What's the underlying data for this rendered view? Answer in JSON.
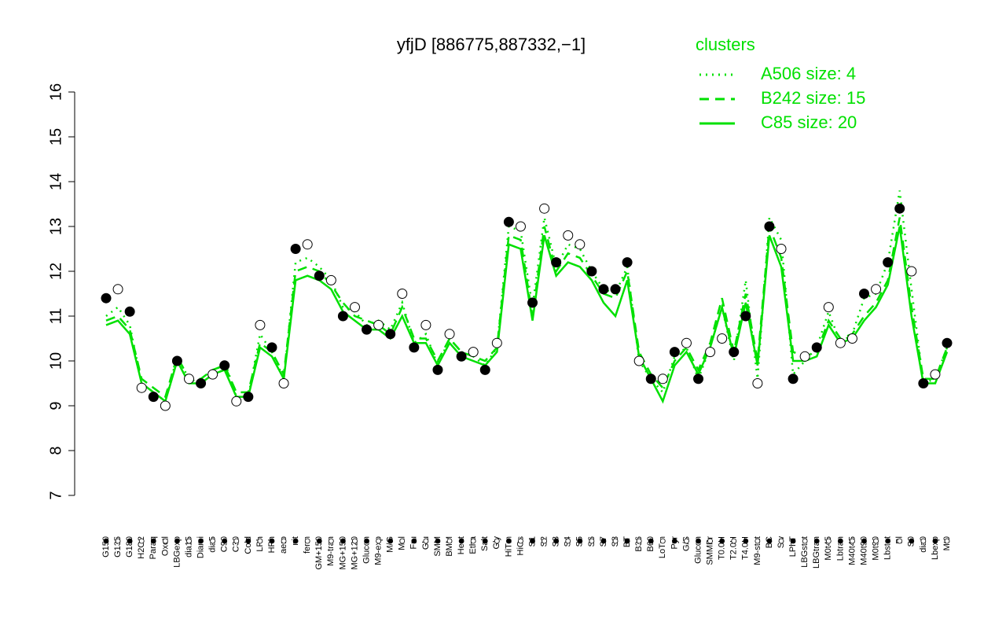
{
  "chart_data": {
    "type": "line",
    "title": "yfjD [886775,887332,−1]",
    "legend_title": "clusters",
    "legend_position": "top-right",
    "ylim": [
      7,
      16
    ],
    "yticks": [
      7,
      8,
      9,
      10,
      11,
      12,
      13,
      14,
      15,
      16
    ],
    "categories": [
      "G150",
      "G135",
      "G180",
      "H2O2",
      "Paraq",
      "Oxctl",
      "LBGexp",
      "dia15",
      "Diami",
      "dia5",
      "C90",
      "C30",
      "Cold",
      "LPh",
      "HPh",
      "aero",
      "nit",
      "ferm",
      "GM+150",
      "M9-tran",
      "MG+150",
      "MG+120",
      "Glucon",
      "M9-exp",
      "M/G",
      "Mal",
      "Fru",
      "Glu",
      "SMM",
      "BMM",
      "Heat",
      "Etha",
      "Salt",
      "Gly",
      "HiTm",
      "HiOs",
      "S1",
      "S2",
      "S3",
      "S4",
      "S5",
      "S6",
      "S7",
      "S8",
      "BT",
      "B36",
      "B60",
      "LoTm",
      "Pyr",
      "G/S",
      "Glucon",
      "SMMPr",
      "T0.0H",
      "T2.0H",
      "T4.0H",
      "M9-stat",
      "BC",
      "Sw",
      "LPhT",
      "LBGstat",
      "LBGtran",
      "M0t45",
      "Lbtran",
      "M40t45",
      "M40t90",
      "M0t90",
      "Lbstat",
      "Bl",
      "S0",
      "dia0",
      "Lbexp",
      "Mt0"
    ],
    "points": {
      "values": [
        11.4,
        11.6,
        11.1,
        9.4,
        9.2,
        9.0,
        10.0,
        9.6,
        9.5,
        9.7,
        9.9,
        9.1,
        9.2,
        10.8,
        10.3,
        9.5,
        12.5,
        12.6,
        11.9,
        11.8,
        11.0,
        11.2,
        10.7,
        10.8,
        10.6,
        11.5,
        10.3,
        10.8,
        9.8,
        10.6,
        10.1,
        10.2,
        9.8,
        10.4,
        13.1,
        13.0,
        11.3,
        13.4,
        12.2,
        12.8,
        12.6,
        12.0,
        11.6,
        11.6,
        12.2,
        10.0,
        9.6,
        9.6,
        10.2,
        10.4,
        9.6,
        10.2,
        10.5,
        10.2,
        11.0,
        9.5,
        13.0,
        12.5,
        9.6,
        10.1,
        10.3,
        11.2,
        10.4,
        10.5,
        11.5,
        11.6,
        12.2,
        13.4,
        12.0,
        9.5,
        9.7,
        10.4
      ],
      "fills": [
        "#000",
        "#fff",
        "#000",
        "#fff",
        "#000",
        "#fff",
        "#000",
        "#fff",
        "#000",
        "#fff",
        "#000",
        "#fff",
        "#000",
        "#fff",
        "#000",
        "#fff",
        "#000",
        "#fff",
        "#000",
        "#fff",
        "#000",
        "#fff",
        "#000",
        "#fff",
        "#000",
        "#fff",
        "#000",
        "#fff",
        "#000",
        "#fff",
        "#000",
        "#fff",
        "#000",
        "#fff",
        "#000",
        "#fff",
        "#000",
        "#fff",
        "#000",
        "#fff",
        "#fff",
        "#000",
        "#000",
        "#000",
        "#000",
        "#fff",
        "#000",
        "#fff",
        "#000",
        "#fff",
        "#000",
        "#fff",
        "#fff",
        "#000",
        "#000",
        "#fff",
        "#000",
        "#fff",
        "#000",
        "#fff",
        "#000",
        "#fff",
        "#fff",
        "#fff",
        "#000",
        "#fff",
        "#000",
        "#000",
        "#fff",
        "#000",
        "#fff",
        "#000"
      ]
    },
    "series": [
      {
        "name": "A506 size: 4",
        "color": "#00e000",
        "dash": "dotted",
        "values": [
          11.0,
          11.2,
          10.8,
          9.5,
          9.3,
          9.1,
          10.1,
          9.6,
          9.5,
          9.7,
          10.0,
          9.2,
          9.2,
          10.6,
          10.2,
          9.6,
          12.2,
          12.3,
          12.1,
          11.8,
          11.2,
          11.1,
          10.8,
          10.9,
          10.7,
          11.3,
          10.4,
          10.6,
          9.9,
          10.5,
          10.2,
          10.1,
          9.9,
          10.3,
          13.0,
          12.9,
          11.2,
          13.2,
          12.1,
          12.6,
          12.5,
          12.0,
          11.6,
          11.5,
          12.1,
          10.0,
          9.6,
          9.3,
          10.1,
          10.3,
          9.6,
          10.3,
          11.2,
          10.0,
          11.8,
          9.6,
          13.2,
          12.7,
          9.7,
          10.0,
          10.3,
          11.1,
          10.4,
          10.6,
          11.4,
          11.5,
          12.2,
          13.8,
          11.6,
          9.5,
          9.6,
          10.3
        ]
      },
      {
        "name": "B242 size: 15",
        "color": "#00e000",
        "dash": "dashed",
        "values": [
          10.9,
          11.0,
          10.7,
          9.6,
          9.4,
          9.2,
          10.1,
          9.6,
          9.6,
          9.8,
          9.9,
          9.3,
          9.3,
          10.4,
          10.2,
          9.7,
          12.0,
          12.1,
          12.0,
          11.7,
          11.3,
          11.0,
          10.9,
          10.8,
          10.6,
          11.2,
          10.5,
          10.5,
          10.0,
          10.5,
          10.2,
          10.1,
          10.0,
          10.3,
          12.8,
          12.7,
          11.0,
          13.0,
          12.0,
          12.4,
          12.3,
          11.9,
          11.5,
          11.4,
          12.0,
          10.2,
          9.7,
          9.4,
          10.0,
          10.3,
          9.8,
          10.4,
          11.4,
          10.2,
          11.5,
          10.0,
          13.0,
          12.3,
          10.2,
          10.1,
          10.2,
          10.9,
          10.5,
          10.6,
          11.0,
          11.3,
          11.8,
          13.2,
          11.2,
          9.6,
          9.6,
          10.3
        ]
      },
      {
        "name": "C85 size: 20",
        "color": "#00e000",
        "dash": "solid",
        "values": [
          10.8,
          10.9,
          10.6,
          9.5,
          9.3,
          9.1,
          10.0,
          9.5,
          9.5,
          9.7,
          9.8,
          9.2,
          9.2,
          10.3,
          10.1,
          9.6,
          11.8,
          11.9,
          11.8,
          11.6,
          11.1,
          10.9,
          10.7,
          10.7,
          10.5,
          11.0,
          10.4,
          10.4,
          9.9,
          10.4,
          10.1,
          10.0,
          9.9,
          10.2,
          12.6,
          12.5,
          10.9,
          12.8,
          11.9,
          12.2,
          12.1,
          11.8,
          11.3,
          11.0,
          11.8,
          10.1,
          9.6,
          9.1,
          9.9,
          10.2,
          9.7,
          10.3,
          11.2,
          10.1,
          11.3,
          9.9,
          12.8,
          12.1,
          10.0,
          10.0,
          10.1,
          10.8,
          10.4,
          10.5,
          10.9,
          11.2,
          11.7,
          13.0,
          11.0,
          9.5,
          9.5,
          10.2
        ]
      }
    ]
  }
}
